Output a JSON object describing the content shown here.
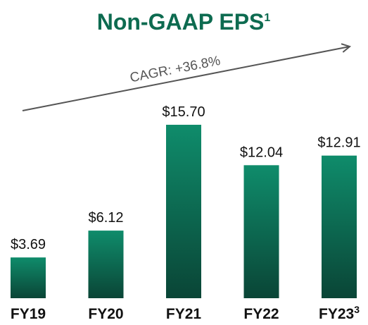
{
  "chart_data": {
    "type": "bar",
    "title": "Non-GAAP EPS",
    "title_footnote": "1",
    "categories": [
      "FY19",
      "FY20",
      "FY21",
      "FY22",
      "FY23"
    ],
    "category_footnotes": [
      null,
      null,
      null,
      null,
      "3"
    ],
    "values": [
      3.69,
      6.12,
      15.7,
      12.04,
      12.91
    ],
    "value_labels": [
      "$3.69",
      "$6.12",
      "$15.70",
      "$12.04",
      "$12.91"
    ],
    "annotation": "CAGR: +36.8%",
    "color_top": "#0f8c6b",
    "color_bottom": "#0a4536"
  }
}
